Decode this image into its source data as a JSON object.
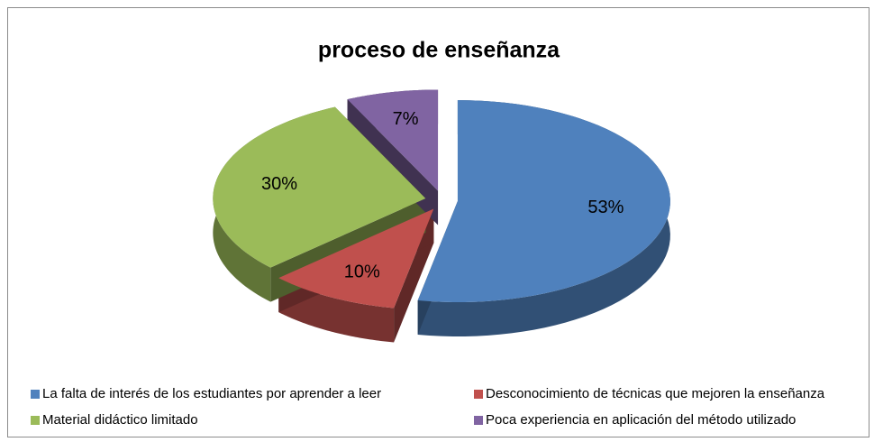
{
  "chart_data": {
    "type": "pie",
    "title": "proceso de enseñanza",
    "categories": [
      "La falta de interés de los estudiantes por aprender a leer",
      "Desconocimiento de técnicas  que mejoren la enseñanza",
      "Material didáctico limitado",
      "Poca experiencia en aplicación del método utilizado"
    ],
    "values": [
      53,
      10,
      30,
      7
    ],
    "value_labels": [
      "53%",
      "10%",
      "30%",
      "7%"
    ],
    "colors": [
      "#4f81bd",
      "#c0504d",
      "#9bbb59",
      "#8064a2"
    ],
    "legend": "bottom"
  }
}
